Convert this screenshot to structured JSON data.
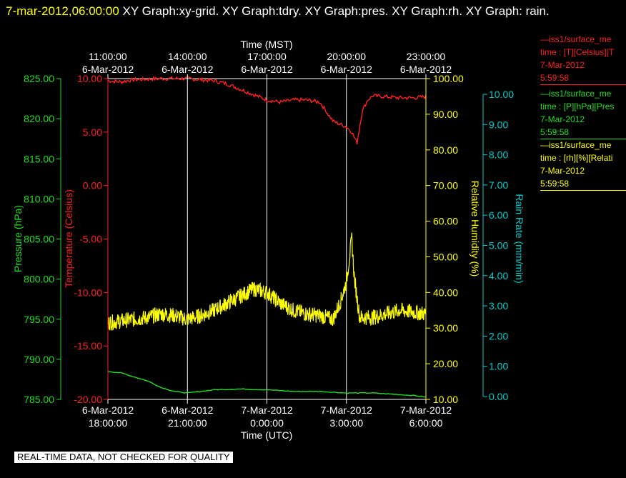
{
  "header": {
    "timestamp": "7-mar-2012,06:00:00",
    "title_rest": " XY Graph:xy-grid.  XY Graph:tdry.  XY Graph:pres.  XY Graph:rh.  XY Graph: rain."
  },
  "colors": {
    "temperature": "#ff2020",
    "pressure": "#22dd22",
    "humidity": "#ffff00",
    "rain": "#00cccc",
    "grid": "#ffffff",
    "background": "#000000"
  },
  "legend": [
    {
      "name": "—iss1/surface_me",
      "line2": "time : [T][Celsius][T",
      "date": "7-Mar-2012",
      "time": "5:59:58",
      "color": "#ff2020"
    },
    {
      "name": "—iss1/surface_me",
      "line2": "time : [P][hPa][Pres",
      "date": "7-Mar-2012",
      "time": "5:59:58",
      "color": "#22dd22"
    },
    {
      "name": "—iss1/surface_me",
      "line2": "time : [rh][%][Relati",
      "date": "7-Mar-2012",
      "time": "5:59:58",
      "color": "#ffff00"
    }
  ],
  "footer": {
    "banner": "REAL-TIME DATA, NOT CHECKED FOR QUALITY"
  },
  "chart_data": {
    "type": "line",
    "x_top_title": "Time (MST)",
    "x_bottom_title": "Time (UTC)",
    "x_ticks": [
      {
        "top": [
          "11:00:00",
          "6-Mar-2012"
        ],
        "bottom": [
          "6-Mar-2012",
          "18:00:00"
        ]
      },
      {
        "top": [
          "14:00:00",
          "6-Mar-2012"
        ],
        "bottom": [
          "6-Mar-2012",
          "21:00:00"
        ]
      },
      {
        "top": [
          "17:00:00",
          "6-Mar-2012"
        ],
        "bottom": [
          "7-Mar-2012",
          "0:00:00"
        ]
      },
      {
        "top": [
          "20:00:00",
          "6-Mar-2012"
        ],
        "bottom": [
          "7-Mar-2012",
          "3:00:00"
        ]
      },
      {
        "top": [
          "23:00:00",
          "6-Mar-2012"
        ],
        "bottom": [
          "7-Mar-2012",
          "6:00:00"
        ]
      }
    ],
    "x_units": "hours after 6-Mar-2012 18:00:00 UTC",
    "xlim": [
      0,
      12
    ],
    "axes": {
      "pressure": {
        "label": "Pressure (hPa)",
        "ylim": [
          785,
          825
        ],
        "ticks": [
          "825.00",
          "820.00",
          "815.00",
          "810.00",
          "805.00",
          "800.00",
          "795.00",
          "790.00",
          "785.00"
        ]
      },
      "temperature": {
        "label": "Temperature (Celsius)",
        "ylim": [
          -20,
          10
        ],
        "ticks": [
          "10.00",
          "5.00",
          "0.00",
          "-5.00",
          "-10.00",
          "-15.00",
          "-20.00"
        ]
      },
      "humidity": {
        "label": "Relative Humidity (%)",
        "ylim": [
          10,
          100
        ],
        "ticks": [
          "100.00",
          "90.00",
          "80.00",
          "70.00",
          "60.00",
          "50.00",
          "40.00",
          "30.00",
          "20.00",
          "10.00"
        ]
      },
      "rain": {
        "label": "Rain Rate (mm/min)",
        "ylim": [
          0,
          10.5
        ],
        "ticks": [
          "10.00",
          "9.00",
          "8.00",
          "7.00",
          "6.00",
          "5.00",
          "4.00",
          "3.00",
          "2.00",
          "1.00",
          "0.00"
        ]
      }
    },
    "series": [
      {
        "key": "temperature",
        "x": [
          0,
          0.5,
          1,
          2,
          3,
          3.5,
          4,
          4.5,
          5,
          5.5,
          6,
          6.5,
          7,
          7.5,
          8,
          8.5,
          9,
          9.2,
          9.4,
          9.6,
          9.8,
          10,
          10.5,
          11,
          11.5,
          12
        ],
        "y": [
          9.8,
          9.7,
          9.9,
          10.0,
          10.0,
          9.9,
          9.8,
          9.5,
          9.0,
          8.5,
          8.0,
          7.8,
          8.0,
          8.0,
          7.8,
          6.0,
          5.5,
          5.0,
          4.0,
          7.0,
          8.0,
          8.4,
          8.3,
          8.2,
          8.2,
          8.3
        ]
      },
      {
        "key": "pressure",
        "x": [
          0,
          0.5,
          1,
          1.5,
          2,
          2.5,
          3,
          3.5,
          4,
          5,
          6,
          7,
          8,
          9,
          10,
          11,
          11.5,
          12
        ],
        "y": [
          788.5,
          788.3,
          787.8,
          787.3,
          786.5,
          786.0,
          785.8,
          786.0,
          786.2,
          786.3,
          786.2,
          786.0,
          786.0,
          785.8,
          785.8,
          785.6,
          785.5,
          785.3
        ]
      },
      {
        "key": "humidity",
        "x": [
          0,
          0.5,
          1,
          1.5,
          2,
          2.5,
          3,
          3.5,
          4,
          4.5,
          5,
          5.5,
          6,
          6.5,
          7,
          7.5,
          8,
          8.5,
          8.8,
          9.0,
          9.2,
          9.3,
          9.5,
          10,
          10.5,
          11,
          11.5,
          12
        ],
        "y": [
          31.5,
          32,
          32.5,
          33,
          34,
          33.5,
          32.5,
          33.5,
          35,
          37,
          39,
          41,
          40,
          37,
          35,
          34,
          33.5,
          32.5,
          38,
          43,
          55,
          44,
          33,
          33,
          34,
          35,
          34.5,
          34
        ]
      },
      {
        "key": "rain",
        "x": [],
        "y": []
      }
    ]
  }
}
